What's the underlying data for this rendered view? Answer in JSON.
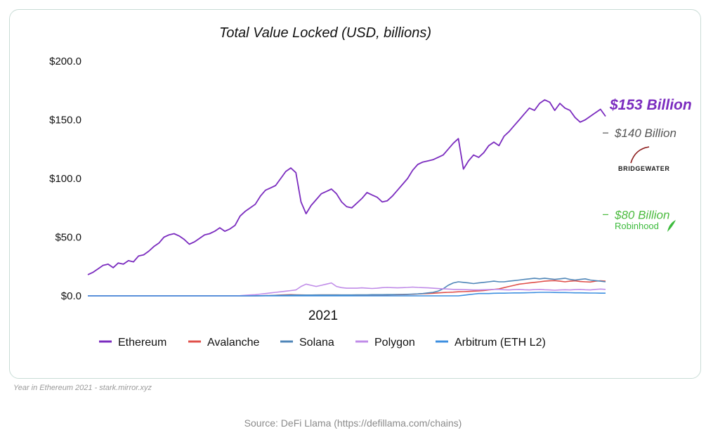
{
  "chart_data": {
    "type": "line",
    "title": "Total Value Locked (USD, billions)",
    "ylim": [
      0,
      200
    ],
    "y_ticks": [
      "$200.0",
      "$150.0",
      "$100.0",
      "$50.0",
      "$0.0"
    ],
    "y_tick_values": [
      200,
      150,
      100,
      50,
      0
    ],
    "x_tick_label": "2021",
    "legend_position": "bottom",
    "grid": false,
    "series": [
      {
        "name": "Ethereum",
        "color": "#7B2CBF",
        "values": [
          18,
          20,
          23,
          26,
          27,
          24,
          28,
          27,
          30,
          29,
          34,
          35,
          38,
          42,
          45,
          50,
          52,
          53,
          51,
          48,
          44,
          46,
          49,
          52,
          53,
          55,
          58,
          55,
          57,
          60,
          68,
          72,
          75,
          78,
          85,
          90,
          92,
          94,
          100,
          106,
          109,
          105,
          80,
          70,
          77,
          82,
          87,
          89,
          91,
          87,
          80,
          76,
          75,
          79,
          83,
          88,
          86,
          84,
          80,
          81,
          85,
          90,
          95,
          100,
          107,
          112,
          114,
          115,
          116,
          118,
          120,
          125,
          130,
          134,
          108,
          115,
          120,
          118,
          122,
          128,
          131,
          128,
          136,
          140,
          145,
          150,
          155,
          160,
          158,
          164,
          167,
          165,
          158,
          164,
          160,
          158,
          152,
          148,
          150,
          153,
          156,
          159,
          153
        ]
      },
      {
        "name": "Avalanche",
        "color": "#E0504A",
        "values": [
          0,
          0,
          0,
          0,
          0,
          0,
          0,
          0,
          0,
          0,
          0,
          0,
          0,
          0,
          0,
          0,
          0,
          0,
          0,
          0,
          0,
          0,
          0,
          0,
          0,
          0,
          0,
          0,
          0,
          0,
          0,
          0,
          0,
          0,
          0.1,
          0.2,
          0.3,
          0.5,
          0.7,
          0.9,
          1,
          0.9,
          0.8,
          0.7,
          0.7,
          0.7,
          0.8,
          0.8,
          0.8,
          0.8,
          0.7,
          0.7,
          0.6,
          0.6,
          0.6,
          0.6,
          0.6,
          0.7,
          0.7,
          0.8,
          0.9,
          1,
          1.1,
          1.2,
          1.4,
          1.6,
          1.8,
          2,
          2.2,
          2.5,
          2.8,
          3,
          3.2,
          3.5,
          3.6,
          3.8,
          4,
          4.2,
          4.5,
          5,
          5.5,
          6,
          7,
          8,
          9,
          10,
          10.5,
          11,
          11.5,
          12,
          12.5,
          12.8,
          13,
          12.5,
          12,
          12.5,
          12.8,
          12.2,
          12,
          11.8,
          12.5,
          12.8,
          12.5
        ]
      },
      {
        "name": "Solana",
        "color": "#4F86B8",
        "values": [
          0,
          0,
          0,
          0,
          0,
          0,
          0,
          0,
          0,
          0,
          0,
          0,
          0,
          0,
          0,
          0,
          0,
          0,
          0,
          0,
          0,
          0,
          0,
          0,
          0,
          0,
          0,
          0,
          0,
          0,
          0,
          0,
          0,
          0,
          0.1,
          0.2,
          0.3,
          0.4,
          0.5,
          0.6,
          0.7,
          0.7,
          0.7,
          0.7,
          0.7,
          0.8,
          0.8,
          0.8,
          0.8,
          0.8,
          0.8,
          0.8,
          0.8,
          0.9,
          0.9,
          0.9,
          1,
          1,
          1,
          1.1,
          1.1,
          1.2,
          1.2,
          1.3,
          1.5,
          1.7,
          2,
          2.5,
          3,
          4,
          6,
          9,
          11,
          12,
          11.5,
          11,
          10.5,
          11,
          11.5,
          12,
          12.5,
          12,
          12,
          12.5,
          13,
          13.5,
          14,
          14.5,
          15,
          14.5,
          15,
          14.5,
          14,
          14.5,
          15,
          14,
          13.5,
          14,
          14.5,
          13.5,
          13,
          12.5,
          12
        ]
      },
      {
        "name": "Polygon",
        "color": "#C08CE8",
        "values": [
          0,
          0,
          0,
          0,
          0,
          0,
          0,
          0,
          0,
          0,
          0,
          0,
          0,
          0,
          0,
          0,
          0,
          0,
          0,
          0,
          0,
          0,
          0,
          0,
          0,
          0,
          0,
          0,
          0,
          0,
          0.2,
          0.5,
          0.8,
          1,
          1.5,
          2,
          2.5,
          3,
          3.5,
          4,
          4.5,
          5,
          8,
          10,
          9,
          8,
          9,
          10,
          11,
          8,
          7,
          6.5,
          6.5,
          6.5,
          6.8,
          6.5,
          6.3,
          6.5,
          7,
          7.2,
          7,
          6.8,
          7,
          7.2,
          7.5,
          7.2,
          7,
          6.8,
          6.5,
          6.2,
          6,
          5.8,
          5.5,
          5.5,
          5.3,
          5.2,
          5,
          5,
          5.2,
          5.3,
          5.5,
          5.5,
          5.2,
          5,
          5.3,
          5.5,
          5.2,
          5,
          5.3,
          5.5,
          5.2,
          5,
          4.8,
          5,
          5.2,
          5,
          5.3,
          5.5,
          5.2,
          5,
          5.5,
          5.8,
          5.5
        ]
      },
      {
        "name": "Arbitrum (ETH L2)",
        "color": "#3D8FE0",
        "values": [
          0,
          0,
          0,
          0,
          0,
          0,
          0,
          0,
          0,
          0,
          0,
          0,
          0,
          0,
          0,
          0,
          0,
          0,
          0,
          0,
          0,
          0,
          0,
          0,
          0,
          0,
          0,
          0,
          0,
          0,
          0,
          0,
          0,
          0,
          0,
          0,
          0,
          0,
          0,
          0,
          0,
          0,
          0,
          0,
          0,
          0,
          0,
          0,
          0,
          0,
          0,
          0,
          0,
          0,
          0,
          0,
          0,
          0,
          0,
          0,
          0,
          0,
          0,
          0,
          0,
          0,
          0,
          0,
          0,
          0,
          0,
          0,
          0,
          0,
          0.5,
          1,
          1.5,
          2,
          2,
          2,
          2.2,
          2.3,
          2.3,
          2.4,
          2.5,
          2.5,
          2.6,
          2.7,
          2.8,
          3,
          3,
          3,
          2.9,
          2.8,
          2.8,
          2.7,
          2.6,
          2.6,
          2.5,
          2.4,
          2.4,
          2.3,
          2.3
        ]
      }
    ]
  },
  "annotations": {
    "ethereum_tvl": {
      "text": "$153 Billion",
      "color": "#7B2CBF"
    },
    "bridgewater_aum": {
      "text": "$140 Billion",
      "color": "#555555",
      "value": 140
    },
    "bridgewater_logo_text": "BRIDGEWATER",
    "robinhood_aum": {
      "text": "$80 Billion",
      "color": "#4CBB3F",
      "value": 80
    },
    "robinhood_logo_text": "Robinhood"
  },
  "caption": "Year in Ethereum 2021 - stark.mirror.xyz",
  "source": "Source: DeFi Llama (https://defillama.com/chains)"
}
